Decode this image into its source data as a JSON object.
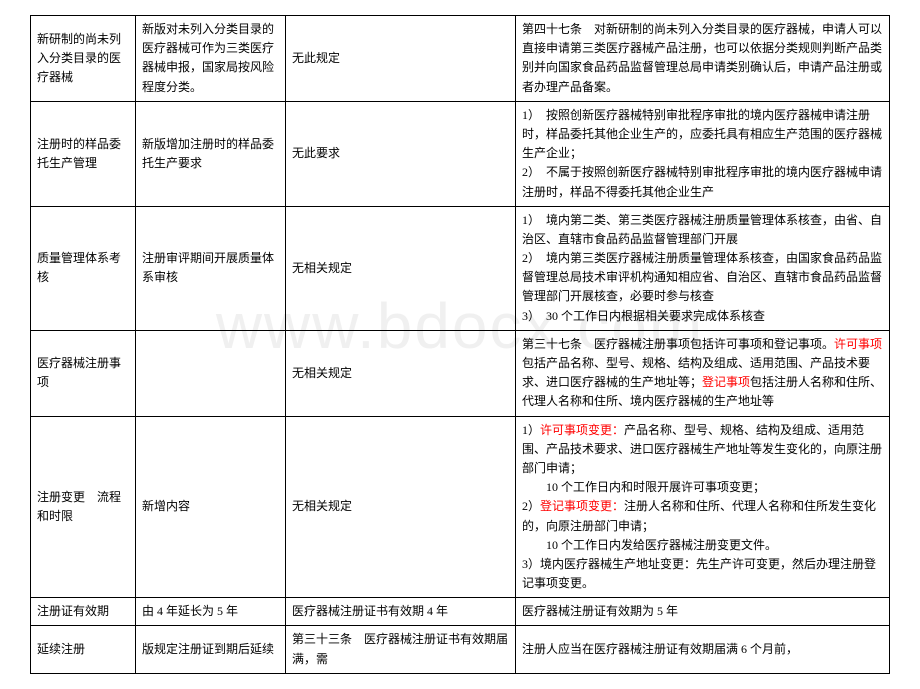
{
  "watermark": "www.bdocx.com",
  "rows": [
    {
      "c1": "新研制的尚未列入分类目录的医疗器械",
      "c2": "新版对未列入分类目录的医疗器械可作为三类医疗器械申报，国家局按风险程度分类。",
      "c3": "无此规定",
      "c4": "第四十七条　对新研制的尚未列入分类目录的医疗器械，申请人可以直接申请第三类医疗器械产品注册，也可以依据分类规则判断产品类别并向国家食品药品监督管理总局申请类别确认后，申请产品注册或者办理产品备案。"
    },
    {
      "c1": "注册时的样品委托生产管理",
      "c2": "新版增加注册时的样品委托生产要求",
      "c3": "无此要求",
      "c4": "1）　按照创新医疗器械特别审批程序审批的境内医疗器械申请注册时，样品委托其他企业生产的，应委托具有相应生产范围的医疗器械生产企业；\n2）　不属于按照创新医疗器械特别审批程序审批的境内医疗器械申请注册时，样品不得委托其他企业生产"
    },
    {
      "c1": "质量管理体系考核",
      "c2": "注册审评期间开展质量体系审核",
      "c3": "无相关规定",
      "c4": "1）　境内第二类、第三类医疗器械注册质量管理体系核查，由省、自治区、直辖市食品药品监督管理部门开展\n2）　境内第三类医疗器械注册质量管理体系核查，由国家食品药品监督管理总局技术审评机构通知相应省、自治区、直辖市食品药品监督管理部门开展核查，必要时参与核查\n3）　30 个工作日内根据相关要求完成体系核查"
    },
    {
      "c1": "医疗器械注册事项",
      "c2": "",
      "c3": "无相关规定",
      "c4_parts": [
        {
          "t": "第三十七条　医疗器械注册事项包括许可事项和登记事项。",
          "r": false
        },
        {
          "t": "许可事项",
          "r": true
        },
        {
          "t": "包括产品名称、型号、规格、结构及组成、适用范围、产品技术要求、进口医疗器械的生产地址等；",
          "r": false
        },
        {
          "t": "登记事项",
          "r": true
        },
        {
          "t": "包括注册人名称和住所、代理人名称和住所、境内医疗器械的生产地址等",
          "r": false
        }
      ]
    },
    {
      "c1": "注册变更　流程和时限",
      "c2": "新增内容",
      "c3": "无相关规定",
      "c4_parts": [
        {
          "t": "1）",
          "r": false
        },
        {
          "t": "许可事项变更：",
          "r": true
        },
        {
          "t": "产品名称、型号、规格、结构及组成、适用范围、产品技术要求、进口医疗器械生产地址等发生变化的，向原注册部门申请；\n　　10 个工作日内和时限开展许可事项变更；\n2）",
          "r": false
        },
        {
          "t": "登记事项变更：",
          "r": true
        },
        {
          "t": "注册人名称和住所、代理人名称和住所发生变化的，向原注册部门申请；\n　　10 个工作日内发给医疗器械注册变更文件。\n3）境内医疗器械生产地址变更：先生产许可变更，然后办理注册登记事项变更。",
          "r": false
        }
      ]
    },
    {
      "c1": "注册证有效期",
      "c2": "由 4 年延长为 5 年",
      "c3": "医疗器械注册证书有效期 4 年",
      "c4": "医疗器械注册证有效期为 5 年"
    },
    {
      "c1": "延续注册",
      "c2": "版规定注册证到期后延续",
      "c3": "第三十三条　医疗器械注册证书有效期届满，需",
      "c4": "注册人应当在医疗器械注册证有效期届满 6 个月前，"
    }
  ]
}
